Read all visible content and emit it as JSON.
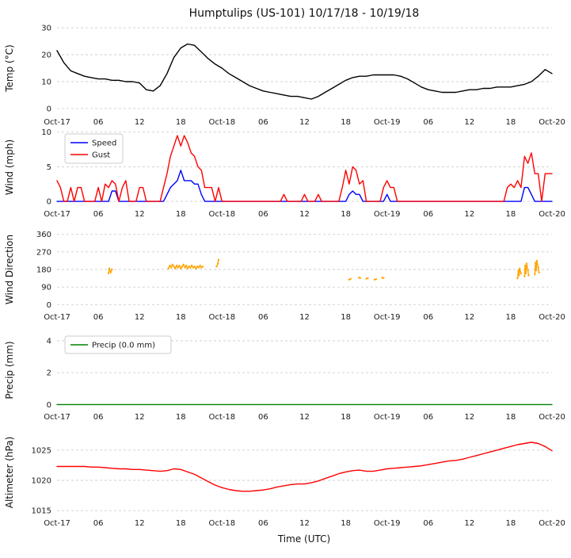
{
  "title": "Humptulips (US-101) 10/17/18 - 10/19/18",
  "xlabel": "Time (UTC)",
  "x_axis": {
    "range": [
      0,
      72
    ],
    "ticks": [
      0,
      6,
      12,
      18,
      24,
      30,
      36,
      42,
      48,
      54,
      60,
      66,
      72
    ],
    "labels": [
      "Oct-17",
      "06",
      "12",
      "18",
      "Oct-18",
      "06",
      "12",
      "18",
      "Oct-19",
      "06",
      "12",
      "18",
      "Oct-20"
    ]
  },
  "chart_data": [
    {
      "type": "line",
      "panel": "temp",
      "ylabel": "Temp (°C)",
      "ylim": [
        -1.5,
        31.5
      ],
      "yticks": [
        0,
        10,
        20,
        30
      ],
      "series": [
        {
          "name": "Temp",
          "color": "#000000",
          "x_start": 0,
          "x_step": 1,
          "values": [
            21.5,
            17,
            14,
            13,
            12,
            11.5,
            11,
            11,
            10.5,
            10.5,
            10,
            10,
            9.5,
            7,
            6.5,
            8.5,
            13,
            19,
            22.5,
            24,
            23.5,
            21,
            18.5,
            16.5,
            15,
            13,
            11.5,
            10,
            8.5,
            7.5,
            6.5,
            6,
            5.5,
            5,
            4.5,
            4.5,
            4,
            3.5,
            4.5,
            6,
            7.5,
            9,
            10.5,
            11.5,
            12,
            12,
            12.5,
            12.5,
            12.5,
            12.5,
            12,
            11,
            9.5,
            8,
            7,
            6.5,
            6,
            6,
            6,
            6.5,
            7,
            7,
            7.5,
            7.5,
            8,
            8,
            8,
            8.5,
            9,
            10,
            12,
            14.5,
            13
          ]
        }
      ]
    },
    {
      "type": "line",
      "panel": "wind",
      "ylabel": "Wind (mph)",
      "ylim": [
        -0.45,
        10.2
      ],
      "yticks": [
        0,
        5,
        10
      ],
      "legend": true,
      "series": [
        {
          "name": "Speed",
          "color": "#0000ff",
          "x": [
            0,
            7.5,
            8,
            8.5,
            9,
            15.5,
            16,
            16.5,
            17,
            17.5,
            18,
            18.5,
            19.5,
            20,
            20.5,
            21,
            21.5,
            42,
            42.5,
            43,
            43.5,
            44,
            44.5,
            47.5,
            48,
            48.5,
            67.5,
            68,
            68.5,
            69,
            69.5,
            72
          ],
          "values": [
            0,
            0,
            1.5,
            1.5,
            0,
            0,
            1,
            2,
            2.5,
            3,
            4.5,
            3,
            3,
            2.5,
            2.5,
            1,
            0,
            0,
            1,
            1.5,
            1,
            1,
            0,
            0,
            1,
            0,
            0,
            2,
            2,
            1,
            0,
            0
          ]
        },
        {
          "name": "Gust",
          "color": "#ff0000",
          "x": [
            0,
            0.5,
            1,
            1.5,
            2,
            2.5,
            3,
            3.5,
            4,
            5.5,
            6,
            6.5,
            7,
            7.5,
            8,
            8.5,
            9,
            9.5,
            10,
            10.5,
            11.5,
            12,
            12.5,
            13,
            15,
            15.5,
            16,
            16.5,
            17,
            17.5,
            18,
            18.5,
            19,
            19.5,
            20,
            20.5,
            21,
            21.5,
            22.5,
            23,
            23.5,
            24,
            32.5,
            33,
            33.5,
            35.5,
            36,
            36.5,
            37.5,
            38,
            38.5,
            41,
            41.5,
            42,
            42.5,
            43,
            43.5,
            44,
            44.5,
            45,
            47,
            47.5,
            48,
            48.5,
            49,
            49.5,
            65,
            65.5,
            66,
            66.5,
            67,
            67.5,
            68,
            68.5,
            69,
            69.5,
            70,
            70.5,
            71,
            72
          ],
          "values": [
            3,
            2,
            0,
            0,
            2,
            0,
            2,
            2,
            0,
            0,
            2,
            0,
            2.5,
            2,
            3,
            2.5,
            0,
            2,
            3,
            0,
            0,
            2,
            2,
            0,
            0,
            2,
            4,
            6.5,
            8,
            9.5,
            8,
            9.5,
            8.5,
            7,
            6.5,
            5,
            4.5,
            2,
            2,
            0,
            2,
            0,
            0,
            1,
            0,
            0,
            1,
            0,
            0,
            1,
            0,
            0,
            2,
            4.5,
            2.5,
            5,
            4.5,
            2.5,
            3,
            0,
            0,
            2,
            3,
            2,
            2,
            0,
            0,
            2,
            2.5,
            2,
            3,
            2,
            6.5,
            5.5,
            7,
            4,
            4,
            0,
            4,
            4
          ]
        }
      ]
    },
    {
      "type": "scatter-line",
      "panel": "wind-direction",
      "ylabel": "Wind Direction",
      "ylim": [
        -15,
        375
      ],
      "yticks": [
        0,
        90,
        180,
        270,
        360
      ],
      "series": [
        {
          "name": "Direction",
          "color": "#ffa500",
          "points": [
            [
              7.5,
              160
            ],
            [
              7.6,
              185
            ],
            [
              7.8,
              165
            ],
            [
              8.0,
              180
            ],
            null,
            [
              16.2,
              185
            ],
            [
              16.4,
              200
            ],
            [
              16.6,
              190
            ],
            [
              16.8,
              205
            ],
            [
              17.0,
              195
            ],
            [
              17.2,
              185
            ],
            [
              17.4,
              200
            ],
            [
              17.6,
              190
            ],
            [
              17.8,
              200
            ],
            [
              18.0,
              185
            ],
            [
              18.2,
              195
            ],
            [
              18.4,
              205
            ],
            [
              18.6,
              190
            ],
            [
              18.8,
              200
            ],
            [
              19.0,
              185
            ],
            [
              19.2,
              195
            ],
            [
              19.4,
              190
            ],
            [
              19.6,
              200
            ],
            [
              19.8,
              190
            ],
            [
              20.0,
              195
            ],
            [
              20.2,
              185
            ],
            [
              20.4,
              195
            ],
            [
              20.6,
              190
            ],
            [
              20.8,
              200
            ],
            [
              21.0,
              190
            ],
            [
              21.2,
              195
            ],
            null,
            [
              23.2,
              195
            ],
            [
              23.4,
              210
            ],
            [
              23.5,
              230
            ],
            null,
            [
              42.5,
              128
            ],
            [
              42.7,
              132
            ],
            null,
            [
              43.9,
              138
            ],
            [
              44.1,
              136
            ],
            null,
            [
              45.0,
              133
            ],
            [
              45.2,
              135
            ],
            null,
            [
              46.2,
              128
            ],
            [
              46.4,
              131
            ],
            null,
            [
              47.3,
              138
            ],
            [
              47.5,
              136
            ],
            null,
            [
              67.0,
              135
            ],
            [
              67.1,
              175
            ],
            [
              67.2,
              150
            ],
            [
              67.3,
              185
            ],
            [
              67.5,
              160
            ],
            null,
            [
              68.0,
              145
            ],
            [
              68.1,
              200
            ],
            [
              68.2,
              160
            ],
            [
              68.3,
              210
            ],
            [
              68.5,
              175
            ],
            [
              68.6,
              150
            ],
            null,
            [
              69.5,
              155
            ],
            [
              69.6,
              215
            ],
            [
              69.7,
              175
            ],
            [
              69.8,
              225
            ],
            [
              70.0,
              190
            ],
            [
              70.1,
              165
            ]
          ]
        }
      ]
    },
    {
      "type": "line",
      "panel": "precip",
      "ylabel": "Precip (mm)",
      "ylim": [
        -0.18,
        4.5
      ],
      "yticks": [
        0,
        2,
        4
      ],
      "legend": true,
      "series": [
        {
          "name": "Precip (0.0 mm)",
          "color": "#008000",
          "x": [
            0,
            72
          ],
          "values": [
            0,
            0
          ]
        }
      ]
    },
    {
      "type": "line",
      "panel": "altimeter",
      "ylabel": "Altimeter (hPa)",
      "ylim": [
        1014.5,
        1028
      ],
      "yticks": [
        1015,
        1020,
        1025
      ],
      "series": [
        {
          "name": "Altimeter",
          "color": "#ff0000",
          "x_start": 0,
          "x_step": 1,
          "values": [
            1022.3,
            1022.3,
            1022.3,
            1022.3,
            1022.3,
            1022.2,
            1022.2,
            1022.1,
            1022.0,
            1021.9,
            1021.9,
            1021.8,
            1021.8,
            1021.7,
            1021.6,
            1021.5,
            1021.6,
            1021.9,
            1021.8,
            1021.4,
            1021.0,
            1020.4,
            1019.8,
            1019.2,
            1018.8,
            1018.5,
            1018.3,
            1018.2,
            1018.2,
            1018.3,
            1018.4,
            1018.6,
            1018.9,
            1019.1,
            1019.3,
            1019.4,
            1019.4,
            1019.6,
            1019.9,
            1020.3,
            1020.7,
            1021.1,
            1021.4,
            1021.6,
            1021.7,
            1021.5,
            1021.5,
            1021.7,
            1021.9,
            1022.0,
            1022.1,
            1022.2,
            1022.3,
            1022.4,
            1022.6,
            1022.8,
            1023.0,
            1023.2,
            1023.3,
            1023.5,
            1023.8,
            1024.1,
            1024.4,
            1024.7,
            1025.0,
            1025.3,
            1025.6,
            1025.9,
            1026.1,
            1026.3,
            1026.1,
            1025.6,
            1024.9
          ]
        }
      ]
    }
  ]
}
